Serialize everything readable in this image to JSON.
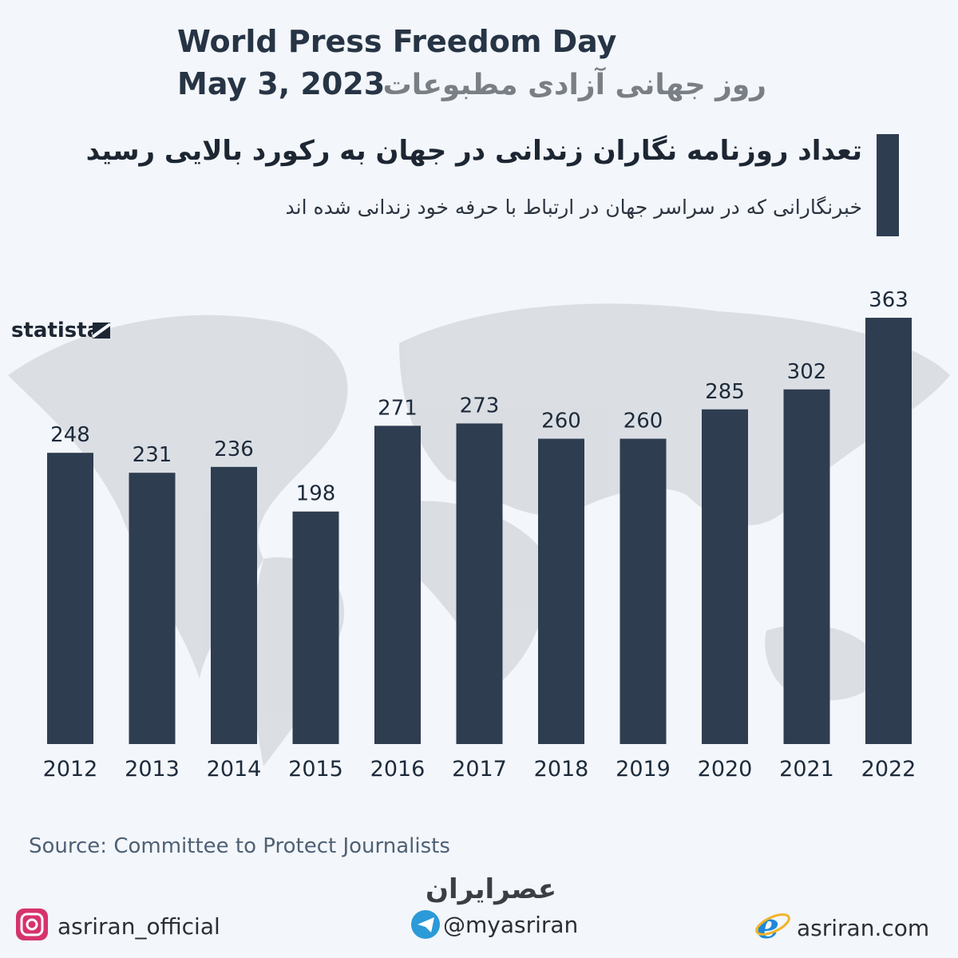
{
  "header": {
    "title": "World Press Freedom Day",
    "date": "May 3, 2023",
    "persian_title": "روز جهانی آزادی مطبوعات"
  },
  "chart_data": {
    "type": "bar",
    "title": "تعداد روزنامه نگاران زندانی در جهان به رکورد بالایی رسید",
    "subtitle": "خبرنگارانی که در سراسر جهان در ارتباط با حرفه خود زندانی شده اند",
    "categories": [
      "2012",
      "2013",
      "2014",
      "2015",
      "2016",
      "2017",
      "2018",
      "2019",
      "2020",
      "2021",
      "2022"
    ],
    "values": [
      248,
      231,
      236,
      198,
      271,
      273,
      260,
      260,
      285,
      302,
      363
    ],
    "color": "#2e3d50",
    "source": "Source: Committee to Protect Journalists",
    "brand": "statista"
  },
  "footer": {
    "logo": "عصرایران",
    "instagram": "asriran_official",
    "telegram": "@myasriran",
    "website": "asriran.com"
  }
}
